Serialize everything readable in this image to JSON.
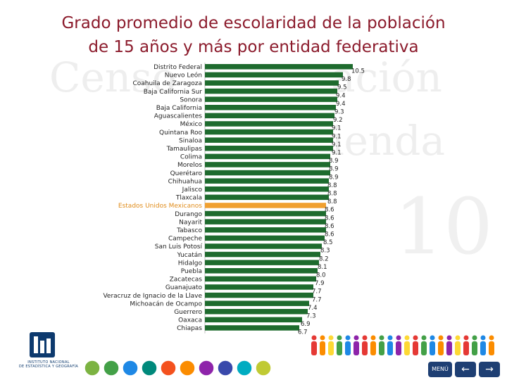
{
  "title": {
    "line1": "Grado promedio de escolaridad de la población",
    "line2": "de 15 años y más por entidad federativa"
  },
  "colors": {
    "title": "#8b1a2b",
    "bar": "#1e6b2e",
    "highlight_bar": "#f0a030",
    "highlight_label": "#e08c1a"
  },
  "icons": [
    "inegi-logo-icon",
    "people-figures-icon",
    "circle-nav-icons",
    "menu-icon",
    "arrow-left-icon",
    "arrow-right-icon"
  ],
  "logo": {
    "line1": "INSTITUTO NACIONAL",
    "line2": "DE ESTADÍSTICA Y GEOGRAFÍA"
  },
  "nav": {
    "menu_label": "MENÚ"
  },
  "chart_data": {
    "type": "bar",
    "orientation": "horizontal",
    "categories": [
      "Distrito Federal",
      "Nuevo León",
      "Coahuila de Zaragoza",
      "Baja California Sur",
      "Sonora",
      "Baja California",
      "Aguascalientes",
      "México",
      "Quintana Roo",
      "Sinaloa",
      "Tamaulipas",
      "Colima",
      "Morelos",
      "Querétaro",
      "Chihuahua",
      "Jalisco",
      "Tlaxcala",
      "Estados Unidos Mexicanos",
      "Durango",
      "Nayarit",
      "Tabasco",
      "Campeche",
      "San Luis Potosí",
      "Yucatán",
      "Hidalgo",
      "Puebla",
      "Zacatecas",
      "Guanajuato",
      "Veracruz de Ignacio de la Llave",
      "Michoacán de Ocampo",
      "Guerrero",
      "Oaxaca",
      "Chiapas"
    ],
    "values": [
      10.5,
      9.8,
      9.5,
      9.4,
      9.4,
      9.3,
      9.2,
      9.1,
      9.1,
      9.1,
      9.1,
      8.9,
      8.9,
      8.9,
      8.8,
      8.8,
      8.8,
      8.6,
      8.6,
      8.6,
      8.6,
      8.5,
      8.3,
      8.2,
      8.1,
      8.0,
      7.9,
      7.7,
      7.7,
      7.4,
      7.3,
      6.9,
      6.7
    ],
    "value_labels": [
      "10.5",
      "9.8",
      "9.5",
      "9.4",
      "9.4",
      "9.3",
      "9.2",
      "9.1",
      "9.1",
      "9.1",
      "9.1",
      "8.9",
      "8.9",
      "8.9",
      "8.8",
      "8.8",
      "8.8",
      "8.6",
      "8.6",
      "8.6",
      "8.6",
      "8.5",
      "8.3",
      "8.2",
      "8.1",
      "8.0",
      "7.9",
      "7.7",
      "7.7",
      "7.4",
      "7.3",
      "6.9",
      "6.7"
    ],
    "highlight": "Estados Unidos Mexicanos",
    "xlim": [
      0,
      10.5
    ],
    "grid": false,
    "legend": "none"
  }
}
